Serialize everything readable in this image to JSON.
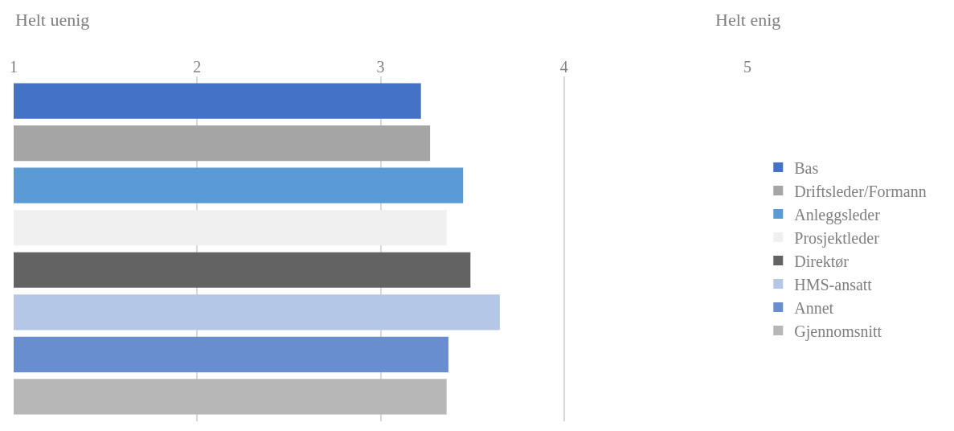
{
  "chart_data": {
    "type": "bar",
    "orientation": "horizontal",
    "categories": [
      null
    ],
    "series": [
      {
        "name": "Bas",
        "color": "#4472c4",
        "values": [
          3.22
        ]
      },
      {
        "name": "Driftsleder/Formann",
        "color": "#a5a5a5",
        "values": [
          3.27
        ]
      },
      {
        "name": "Anleggsleder",
        "color": "#5b9bd5",
        "values": [
          3.45
        ]
      },
      {
        "name": "Prosjektleder",
        "color": "#f0f0f0",
        "values": [
          3.36
        ]
      },
      {
        "name": "Direktør",
        "color": "#636363",
        "values": [
          3.49
        ]
      },
      {
        "name": "HMS-ansatt",
        "color": "#b4c7e7",
        "values": [
          3.65
        ]
      },
      {
        "name": "Annet",
        "color": "#698ed0",
        "values": [
          3.37
        ]
      },
      {
        "name": "Gjennomsnitt",
        "color": "#b7b7b7",
        "values": [
          3.36
        ]
      }
    ],
    "xlim": [
      1,
      5
    ],
    "xticks": [
      1,
      2,
      3,
      4,
      5
    ],
    "grid": "x",
    "legend": "right",
    "annotations": [
      "Helt uenig",
      "Helt enig"
    ]
  }
}
